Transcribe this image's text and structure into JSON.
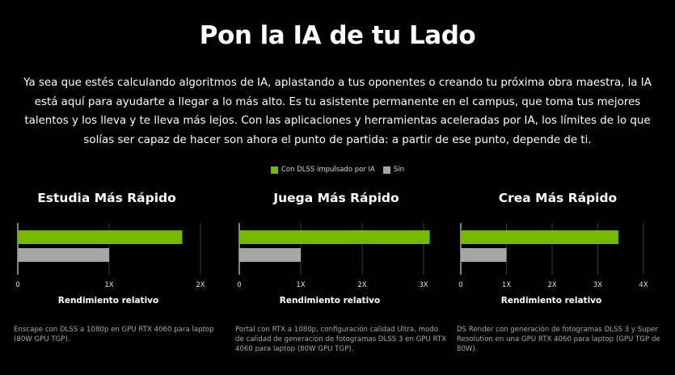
{
  "page": {
    "title": "Pon la IA de tu Lado",
    "intro": "Ya sea que estés calculando algoritmos de IA, aplastando a tus oponentes o creando tu próxima obra maestra, la IA está aquí para ayudarte a llegar a lo más alto. Es tu asistente permanente en el campus, que toma tus mejores talentos y los lleva y te lleva más lejos. Con las aplicaciones y herramientas aceleradas por IA, los límites de lo que solías ser capaz de hacer son ahora el punto de partida: a partir de ese punto, depende de ti."
  },
  "legend": [
    {
      "label": "Con DLSS impulsado por IA",
      "color": "#76b900"
    },
    {
      "label": "Sin",
      "color": "#a6a6a6"
    }
  ],
  "chart_data": [
    {
      "type": "bar",
      "orientation": "horizontal",
      "title": "Estudia Más Rápido",
      "xlabel": "Rendimiento relativo",
      "ylabel": "",
      "categories": [
        "Con DLSS impulsado por IA",
        "Sin"
      ],
      "values": [
        1.8,
        1.0
      ],
      "colors": [
        "#76b900",
        "#a6a6a6"
      ],
      "ticks": [
        0,
        1,
        2
      ],
      "tick_labels": [
        "0",
        "1X",
        "2X"
      ],
      "xlim": [
        0,
        2
      ],
      "grid": true,
      "note": "Enscape con DLSS a 1080p en GPU RTX 4060 para laptop (80W GPU TGP)."
    },
    {
      "type": "bar",
      "orientation": "horizontal",
      "title": "Juega Más Rápido",
      "xlabel": "Rendimiento relativo",
      "ylabel": "",
      "categories": [
        "Con DLSS impulsado por IA",
        "Sin"
      ],
      "values": [
        3.1,
        1.0
      ],
      "colors": [
        "#76b900",
        "#a6a6a6"
      ],
      "ticks": [
        0,
        1,
        2,
        3
      ],
      "tick_labels": [
        "0",
        "1X",
        "2X",
        "3X"
      ],
      "xlim": [
        0,
        3
      ],
      "grid": true,
      "note": "Portal con RTX a 1080p, configuración calidad Ultra, modo de calidad de generación de fotogramas DLSS 3 en GPU RTX 4060 para laptop (80W GPU TGP)."
    },
    {
      "type": "bar",
      "orientation": "horizontal",
      "title": "Crea Más Rápido",
      "xlabel": "Rendimiento relativo",
      "ylabel": "",
      "categories": [
        "Con DLSS impulsado por IA",
        "Sin"
      ],
      "values": [
        3.45,
        1.0
      ],
      "colors": [
        "#76b900",
        "#a6a6a6"
      ],
      "ticks": [
        0,
        1,
        2,
        3,
        4
      ],
      "tick_labels": [
        "0",
        "1X",
        "2X",
        "3X",
        "4X"
      ],
      "xlim": [
        0,
        4
      ],
      "grid": true,
      "note": "DS Render con generación de fotogramas DLSS 3 y Super Resolution en una GPU RTX 4060 para laptop (GPU TGP de 80W)."
    }
  ]
}
